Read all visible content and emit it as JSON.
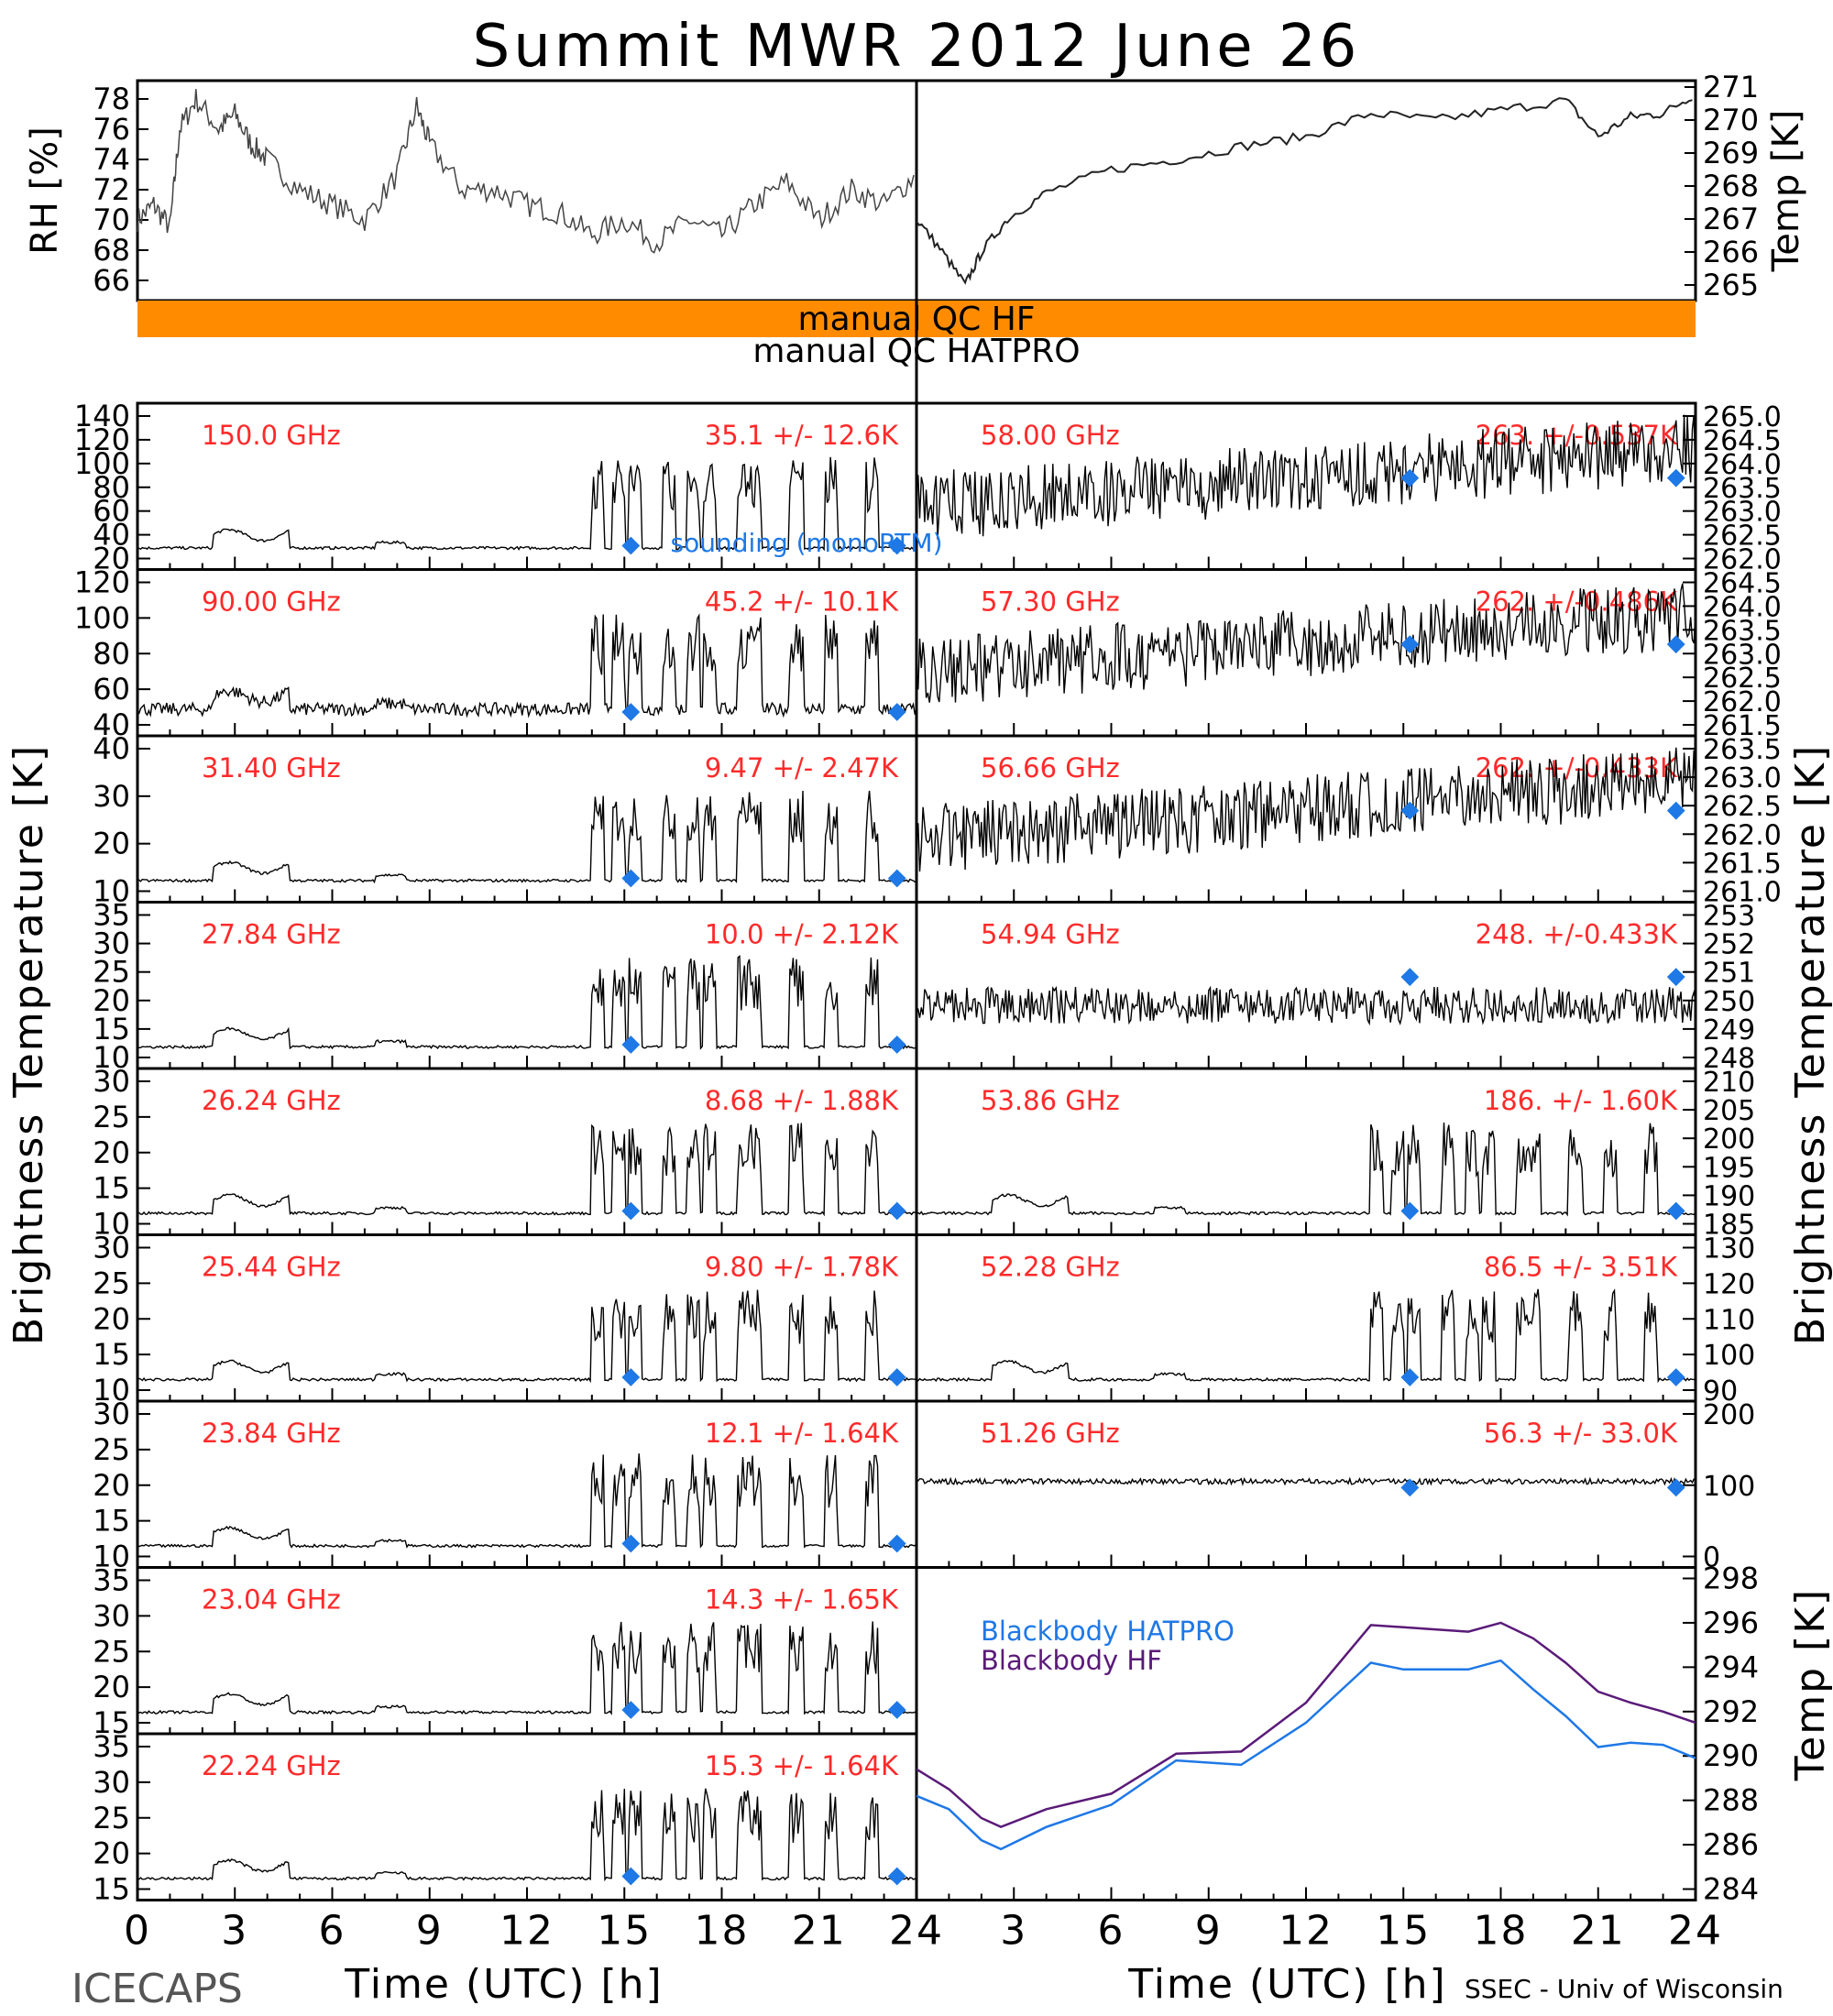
{
  "title": "Summit MWR 2012 June 26",
  "top": {
    "rh_label": "RH [%]",
    "rh_ticks": [
      "78",
      "76",
      "74",
      "72",
      "70",
      "68",
      "66"
    ],
    "temp_label": "Temp [K]",
    "temp_ticks": [
      "271",
      "270",
      "269",
      "268",
      "267",
      "266",
      "265"
    ],
    "qc_hf": "manual QC HF",
    "qc_hatpro": "manual QC HATPRO",
    "qc_color": "#ff8c00"
  },
  "legend_sounding": "sounding (monoRTM)",
  "left_panels": [
    {
      "freq": "150.0 GHz",
      "stat": "35.1 +/- 12.6K",
      "ticks": [
        "140",
        "120",
        "100",
        "80",
        "60",
        "40",
        "20"
      ]
    },
    {
      "freq": "90.00 GHz",
      "stat": "45.2 +/- 10.1K",
      "ticks": [
        "120",
        "100",
        "80",
        "60",
        "40"
      ]
    },
    {
      "freq": "31.40 GHz",
      "stat": "9.47 +/- 2.47K",
      "ticks": [
        "40",
        "30",
        "20",
        "10"
      ]
    },
    {
      "freq": "27.84 GHz",
      "stat": "10.0 +/- 2.12K",
      "ticks": [
        "35",
        "30",
        "25",
        "20",
        "15",
        "10"
      ]
    },
    {
      "freq": "26.24 GHz",
      "stat": "8.68 +/- 1.88K",
      "ticks": [
        "30",
        "25",
        "20",
        "15",
        "10"
      ]
    },
    {
      "freq": "25.44 GHz",
      "stat": "9.80 +/- 1.78K",
      "ticks": [
        "30",
        "25",
        "20",
        "15",
        "10"
      ]
    },
    {
      "freq": "23.84 GHz",
      "stat": "12.1 +/- 1.64K",
      "ticks": [
        "30",
        "25",
        "20",
        "15",
        "10"
      ]
    },
    {
      "freq": "23.04 GHz",
      "stat": "14.3 +/- 1.65K",
      "ticks": [
        "35",
        "30",
        "25",
        "20",
        "15"
      ]
    },
    {
      "freq": "22.24 GHz",
      "stat": "15.3 +/- 1.64K",
      "ticks": [
        "35",
        "30",
        "25",
        "20",
        "15"
      ]
    }
  ],
  "right_panels": [
    {
      "freq": "58.00 GHz",
      "stat": "263. +/-0.537K",
      "ticks": [
        "265.0",
        "264.5",
        "264.0",
        "263.5",
        "263.0",
        "262.5",
        "262.0"
      ]
    },
    {
      "freq": "57.30 GHz",
      "stat": "262. +/-0.486K",
      "ticks": [
        "264.5",
        "264.0",
        "263.5",
        "263.0",
        "262.5",
        "262.0",
        "261.5"
      ]
    },
    {
      "freq": "56.66 GHz",
      "stat": "262. +/-0.433K",
      "ticks": [
        "263.5",
        "263.0",
        "262.5",
        "262.0",
        "261.5",
        "261.0"
      ]
    },
    {
      "freq": "54.94 GHz",
      "stat": "248. +/-0.433K",
      "ticks": [
        "253",
        "252",
        "251",
        "250",
        "249",
        "248"
      ]
    },
    {
      "freq": "53.86 GHz",
      "stat": "186. +/- 1.60K",
      "ticks": [
        "210",
        "205",
        "200",
        "195",
        "190",
        "185"
      ]
    },
    {
      "freq": "52.28 GHz",
      "stat": "86.5 +/- 3.51K",
      "ticks": [
        "130",
        "120",
        "110",
        "100",
        "90"
      ]
    },
    {
      "freq": "51.26 GHz",
      "stat": "56.3 +/- 33.0K",
      "ticks": [
        "200",
        "100",
        "0"
      ]
    }
  ],
  "bb": {
    "hatpro_label": "Blackbody HATPRO",
    "hf_label": "Blackbody HF",
    "hatpro_color": "#1e78e6",
    "hf_color": "#5a1a78",
    "ticks": [
      "298",
      "296",
      "294",
      "292",
      "290",
      "288",
      "286",
      "284"
    ],
    "ylabel": "Temp [K]"
  },
  "bt_label": "Brightness Temperature [K]",
  "x_ticks": [
    "0",
    "3",
    "6",
    "9",
    "12",
    "15",
    "18",
    "21",
    "24"
  ],
  "x_label": "Time (UTC) [h]",
  "footer_left": "ICECAPS",
  "footer_right": "SSEC - Univ of Wisconsin",
  "chart_data": {
    "type": "line",
    "title": "Summit MWR 2012 June 26",
    "xlabel": "Time (UTC) [h]",
    "ylabel": "Brightness Temperature [K]",
    "xlim": [
      0,
      24
    ],
    "series": [
      {
        "name": "Blackbody HATPRO",
        "x": [
          0,
          1,
          2,
          2.6,
          4,
          6,
          8,
          10,
          12,
          14,
          15,
          17,
          18,
          19,
          20,
          21,
          22,
          23,
          24
        ],
        "values": [
          288.2,
          287.6,
          286.2,
          285.8,
          286.8,
          287.8,
          289.8,
          289.6,
          291.5,
          294.2,
          293.9,
          293.9,
          294.3,
          293.0,
          291.8,
          290.4,
          290.6,
          290.5,
          289.9
        ]
      },
      {
        "name": "Blackbody HF",
        "x": [
          0,
          1,
          2,
          2.6,
          4,
          6,
          8,
          10,
          12,
          14,
          15,
          17,
          18,
          19,
          20,
          21,
          22,
          23,
          24
        ],
        "values": [
          289.4,
          288.5,
          287.2,
          286.8,
          287.6,
          288.3,
          290.1,
          290.2,
          292.4,
          295.9,
          295.8,
          295.6,
          296.0,
          295.3,
          294.2,
          292.9,
          292.4,
          292.0,
          291.5
        ]
      }
    ],
    "sounding_markers": {
      "hours": [
        15.2,
        23.4
      ]
    }
  }
}
